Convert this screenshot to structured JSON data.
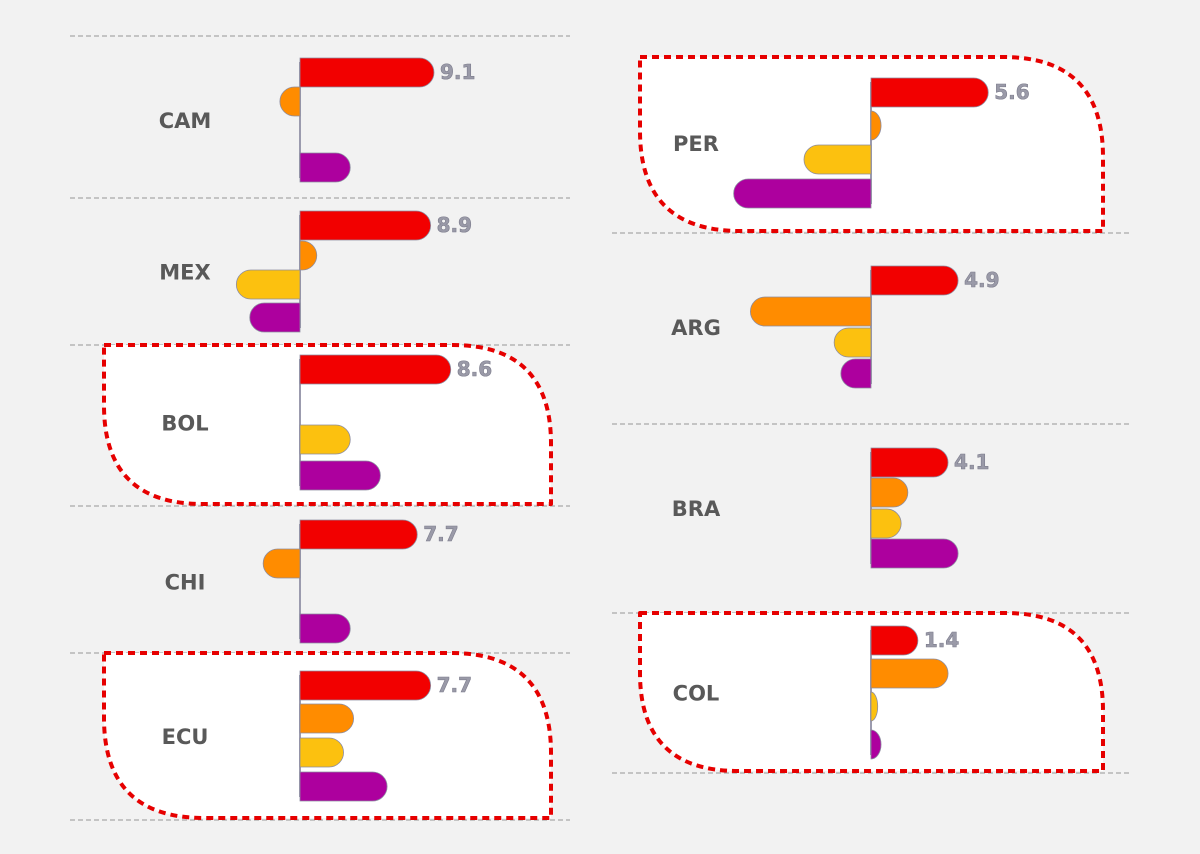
{
  "chart_data": {
    "type": "bar",
    "series_colors": [
      "#f20000",
      "#ff8c00",
      "#fcc10f",
      "#ad009e"
    ],
    "highlight_color": "#e60000",
    "panels": [
      {
        "label": "CAM",
        "total": "9.1",
        "values": [
          4.0,
          -0.6,
          0.0,
          1.5
        ],
        "highlighted": false
      },
      {
        "label": "MEX",
        "total": "8.9",
        "values": [
          3.9,
          0.5,
          -1.9,
          -1.5
        ],
        "highlighted": false
      },
      {
        "label": "BOL",
        "total": "8.6",
        "values": [
          4.5,
          0.0,
          1.5,
          2.4
        ],
        "highlighted": true
      },
      {
        "label": "CHI",
        "total": "7.7",
        "values": [
          3.5,
          -1.1,
          0.0,
          1.5
        ],
        "highlighted": false
      },
      {
        "label": "ECU",
        "total": "7.7",
        "values": [
          3.9,
          1.6,
          1.3,
          2.6
        ],
        "highlighted": true
      },
      {
        "label": "PER",
        "total": "5.6",
        "values": [
          3.5,
          0.3,
          -2.0,
          -4.1
        ],
        "highlighted": true
      },
      {
        "label": "ARG",
        "total": "4.9",
        "values": [
          2.6,
          -3.6,
          -1.1,
          -0.9
        ],
        "highlighted": false
      },
      {
        "label": "BRA",
        "total": "4.1",
        "values": [
          2.3,
          1.1,
          0.9,
          2.6
        ],
        "highlighted": false
      },
      {
        "label": "COL",
        "total": "1.4",
        "values": [
          1.4,
          2.3,
          0.2,
          0.3
        ],
        "highlighted": true
      }
    ]
  }
}
